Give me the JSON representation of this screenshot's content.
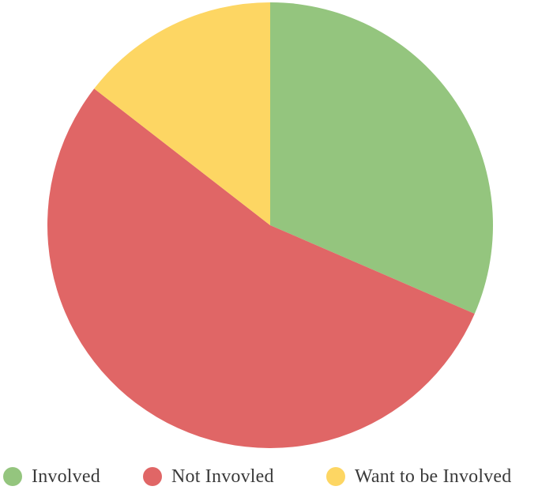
{
  "chart_data": {
    "type": "pie",
    "title": "",
    "slices": [
      {
        "label": "Involved",
        "value": 31.5,
        "color": "#94c57e"
      },
      {
        "label": "Not Invovled",
        "value": 54,
        "color": "#e06666"
      },
      {
        "label": "Want to be Involved",
        "value": 14.5,
        "color": "#fdd663"
      }
    ],
    "start_angle": "12 o'clock",
    "direction": "clockwise",
    "legend_position": "bottom"
  }
}
